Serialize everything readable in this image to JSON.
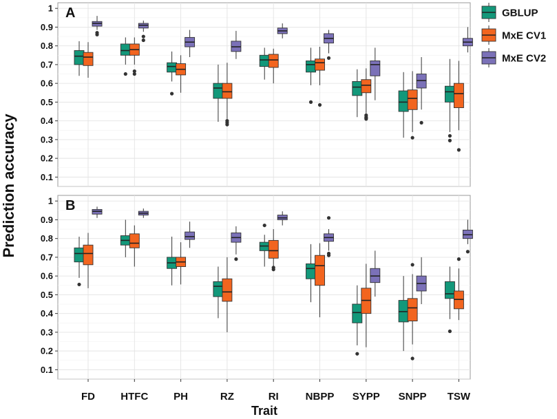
{
  "chart_data": {
    "type": "boxplot",
    "xlabel": "Trait",
    "ylabel": "Prediction accuracy",
    "ylim": [
      0.05,
      1.03
    ],
    "yticks": [
      "0.1",
      "0.2",
      "0.3",
      "0.4",
      "0.5",
      "0.6",
      "0.7",
      "0.8",
      "0.9",
      "1"
    ],
    "categories": [
      "FD",
      "HTFC",
      "PH",
      "RZ",
      "RI",
      "NBPP",
      "SYPP",
      "SNPP",
      "TSW"
    ],
    "legend": [
      {
        "name": "GBLUP",
        "color": "#13987a"
      },
      {
        "name": "MxE CV1",
        "color": "#f2651f"
      },
      {
        "name": "MxE CV2",
        "color": "#7b71b8"
      }
    ],
    "panels": [
      {
        "label": "A",
        "series": [
          {
            "name": "GBLUP",
            "stats": [
              {
                "min": 0.64,
                "q1": 0.7,
                "median": 0.745,
                "q3": 0.775,
                "max": 0.825,
                "outliers": []
              },
              {
                "min": 0.7,
                "q1": 0.75,
                "median": 0.775,
                "q3": 0.81,
                "max": 0.845,
                "outliers": [
                  0.65
                ]
              },
              {
                "min": 0.61,
                "q1": 0.66,
                "median": 0.69,
                "q3": 0.71,
                "max": 0.77,
                "outliers": [
                  0.545
                ]
              },
              {
                "min": 0.395,
                "q1": 0.52,
                "median": 0.575,
                "q3": 0.6,
                "max": 0.7,
                "outliers": []
              },
              {
                "min": 0.62,
                "q1": 0.69,
                "median": 0.725,
                "q3": 0.75,
                "max": 0.79,
                "outliers": []
              },
              {
                "min": 0.59,
                "q1": 0.66,
                "median": 0.7,
                "q3": 0.72,
                "max": 0.79,
                "outliers": [
                  0.5
                ]
              },
              {
                "min": 0.42,
                "q1": 0.535,
                "median": 0.58,
                "q3": 0.61,
                "max": 0.675,
                "outliers": []
              },
              {
                "min": 0.31,
                "q1": 0.45,
                "median": 0.5,
                "q3": 0.56,
                "max": 0.66,
                "outliers": []
              },
              {
                "min": 0.34,
                "q1": 0.5,
                "median": 0.555,
                "q3": 0.585,
                "max": 0.73,
                "outliers": [
                  0.32,
                  0.295
                ]
              }
            ]
          },
          {
            "name": "MxE CV1",
            "stats": [
              {
                "min": 0.63,
                "q1": 0.695,
                "median": 0.74,
                "q3": 0.765,
                "max": 0.82,
                "outliers": []
              },
              {
                "min": 0.7,
                "q1": 0.75,
                "median": 0.78,
                "q3": 0.81,
                "max": 0.845,
                "outliers": [
                  0.665,
                  0.65
                ]
              },
              {
                "min": 0.55,
                "q1": 0.645,
                "median": 0.675,
                "q3": 0.705,
                "max": 0.75,
                "outliers": []
              },
              {
                "min": 0.41,
                "q1": 0.52,
                "median": 0.555,
                "q3": 0.6,
                "max": 0.71,
                "outliers": [
                  0.4,
                  0.39,
                  0.38
                ]
              },
              {
                "min": 0.6,
                "q1": 0.685,
                "median": 0.725,
                "q3": 0.755,
                "max": 0.785,
                "outliers": []
              },
              {
                "min": 0.59,
                "q1": 0.67,
                "median": 0.71,
                "q3": 0.73,
                "max": 0.795,
                "outliers": [
                  0.485
                ]
              },
              {
                "min": 0.44,
                "q1": 0.55,
                "median": 0.59,
                "q3": 0.62,
                "max": 0.68,
                "outliers": [
                  0.43,
                  0.42,
                  0.415,
                  0.41
                ]
              },
              {
                "min": 0.34,
                "q1": 0.46,
                "median": 0.52,
                "q3": 0.565,
                "max": 0.665,
                "outliers": [
                  0.31
                ]
              },
              {
                "min": 0.35,
                "q1": 0.47,
                "median": 0.545,
                "q3": 0.6,
                "max": 0.72,
                "outliers": [
                  0.245
                ]
              }
            ]
          },
          {
            "name": "MxE CV2",
            "stats": [
              {
                "min": 0.885,
                "q1": 0.905,
                "median": 0.92,
                "q3": 0.93,
                "max": 0.96,
                "outliers": [
                  0.87,
                  0.86
                ]
              },
              {
                "min": 0.875,
                "q1": 0.895,
                "median": 0.91,
                "q3": 0.92,
                "max": 0.935,
                "outliers": [
                  0.85,
                  0.83
                ]
              },
              {
                "min": 0.74,
                "q1": 0.795,
                "median": 0.82,
                "q3": 0.845,
                "max": 0.885,
                "outliers": []
              },
              {
                "min": 0.73,
                "q1": 0.77,
                "median": 0.795,
                "q3": 0.825,
                "max": 0.88,
                "outliers": []
              },
              {
                "min": 0.84,
                "q1": 0.865,
                "median": 0.88,
                "q3": 0.895,
                "max": 0.92,
                "outliers": []
              },
              {
                "min": 0.76,
                "q1": 0.815,
                "median": 0.84,
                "q3": 0.865,
                "max": 0.885,
                "outliers": [
                  0.735
                ]
              },
              {
                "min": 0.51,
                "q1": 0.64,
                "median": 0.7,
                "q3": 0.72,
                "max": 0.79,
                "outliers": []
              },
              {
                "min": 0.46,
                "q1": 0.575,
                "median": 0.615,
                "q3": 0.65,
                "max": 0.74,
                "outliers": [
                  0.39
                ]
              },
              {
                "min": 0.765,
                "q1": 0.8,
                "median": 0.82,
                "q3": 0.84,
                "max": 0.9,
                "outliers": []
              }
            ]
          }
        ]
      },
      {
        "label": "B",
        "series": [
          {
            "name": "GBLUP",
            "stats": [
              {
                "min": 0.59,
                "q1": 0.675,
                "median": 0.72,
                "q3": 0.75,
                "max": 0.81,
                "outliers": [
                  0.555
                ]
              },
              {
                "min": 0.7,
                "q1": 0.765,
                "median": 0.79,
                "q3": 0.815,
                "max": 0.9,
                "outliers": []
              },
              {
                "min": 0.55,
                "q1": 0.64,
                "median": 0.67,
                "q3": 0.7,
                "max": 0.81,
                "outliers": []
              },
              {
                "min": 0.375,
                "q1": 0.49,
                "median": 0.545,
                "q3": 0.57,
                "max": 0.65,
                "outliers": []
              },
              {
                "min": 0.65,
                "q1": 0.735,
                "median": 0.76,
                "q3": 0.78,
                "max": 0.82,
                "outliers": [
                  0.87
                ]
              },
              {
                "min": 0.46,
                "q1": 0.585,
                "median": 0.64,
                "q3": 0.665,
                "max": 0.77,
                "outliers": []
              },
              {
                "min": 0.23,
                "q1": 0.35,
                "median": 0.405,
                "q3": 0.45,
                "max": 0.55,
                "outliers": [
                  0.185
                ]
              },
              {
                "min": 0.2,
                "q1": 0.355,
                "median": 0.41,
                "q3": 0.47,
                "max": 0.6,
                "outliers": []
              },
              {
                "min": 0.37,
                "q1": 0.48,
                "median": 0.505,
                "q3": 0.57,
                "max": 0.65,
                "outliers": [
                  0.305
                ]
              }
            ]
          },
          {
            "name": "MxE CV1",
            "stats": [
              {
                "min": 0.535,
                "q1": 0.66,
                "median": 0.72,
                "q3": 0.765,
                "max": 0.83,
                "outliers": []
              },
              {
                "min": 0.65,
                "q1": 0.75,
                "median": 0.775,
                "q3": 0.825,
                "max": 0.87,
                "outliers": []
              },
              {
                "min": 0.555,
                "q1": 0.65,
                "median": 0.675,
                "q3": 0.7,
                "max": 0.78,
                "outliers": []
              },
              {
                "min": 0.3,
                "q1": 0.465,
                "median": 0.515,
                "q3": 0.585,
                "max": 0.7,
                "outliers": []
              },
              {
                "min": 0.63,
                "q1": 0.695,
                "median": 0.735,
                "q3": 0.79,
                "max": 0.85,
                "outliers": [
                  0.645,
                  0.635
                ]
              },
              {
                "min": 0.38,
                "q1": 0.55,
                "median": 0.655,
                "q3": 0.71,
                "max": 0.775,
                "outliers": []
              },
              {
                "min": 0.22,
                "q1": 0.4,
                "median": 0.47,
                "q3": 0.535,
                "max": 0.665,
                "outliers": []
              },
              {
                "min": 0.235,
                "q1": 0.36,
                "median": 0.43,
                "q3": 0.48,
                "max": 0.61,
                "outliers": [
                  0.66,
                  0.16
                ]
              },
              {
                "min": 0.365,
                "q1": 0.425,
                "median": 0.475,
                "q3": 0.52,
                "max": 0.64,
                "outliers": [
                  0.69
                ]
              }
            ]
          },
          {
            "name": "MxE CV2",
            "stats": [
              {
                "min": 0.91,
                "q1": 0.93,
                "median": 0.945,
                "q3": 0.955,
                "max": 0.97,
                "outliers": []
              },
              {
                "min": 0.91,
                "q1": 0.925,
                "median": 0.935,
                "q3": 0.945,
                "max": 0.96,
                "outliers": []
              },
              {
                "min": 0.75,
                "q1": 0.795,
                "median": 0.81,
                "q3": 0.835,
                "max": 0.89,
                "outliers": []
              },
              {
                "min": 0.715,
                "q1": 0.78,
                "median": 0.805,
                "q3": 0.83,
                "max": 0.865,
                "outliers": [
                  0.69
                ]
              },
              {
                "min": 0.87,
                "q1": 0.9,
                "median": 0.91,
                "q3": 0.925,
                "max": 0.945,
                "outliers": []
              },
              {
                "min": 0.735,
                "q1": 0.785,
                "median": 0.805,
                "q3": 0.825,
                "max": 0.85,
                "outliers": [
                  0.91,
                  0.72,
                  0.71
                ]
              },
              {
                "min": 0.49,
                "q1": 0.565,
                "median": 0.6,
                "q3": 0.64,
                "max": 0.735,
                "outliers": []
              },
              {
                "min": 0.45,
                "q1": 0.52,
                "median": 0.56,
                "q3": 0.6,
                "max": 0.7,
                "outliers": []
              },
              {
                "min": 0.77,
                "q1": 0.8,
                "median": 0.82,
                "q3": 0.845,
                "max": 0.9,
                "outliers": [
                  0.73
                ]
              }
            ]
          }
        ]
      }
    ]
  }
}
